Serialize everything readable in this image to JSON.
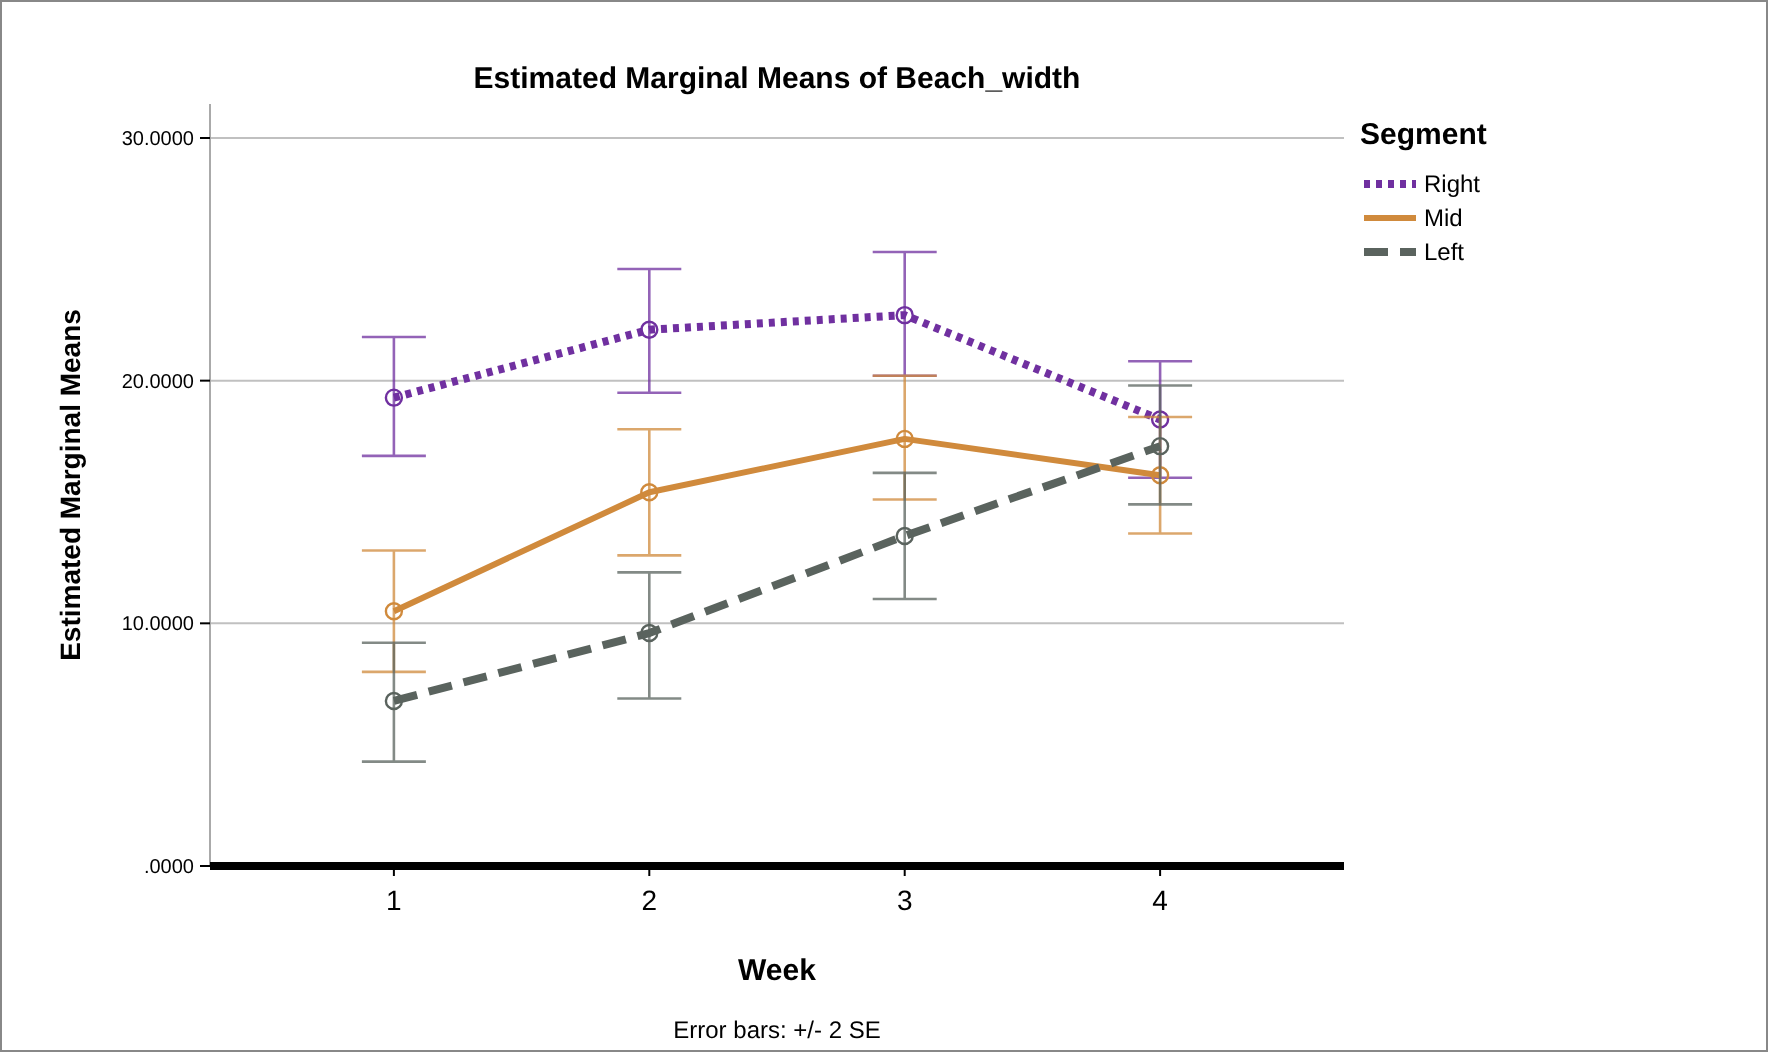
{
  "chart_data": {
    "type": "line",
    "title": "Estimated Marginal Means of Beach_width",
    "xlabel": "Week",
    "ylabel": "Estimated Marginal Means",
    "legend_title": "Segment",
    "legend": "top right",
    "grid": "y",
    "marker": "circle",
    "categories": [
      "1",
      "2",
      "3",
      "4"
    ],
    "ylim": [
      0,
      31.4
    ],
    "yticks": [
      {
        "value": 0,
        "label": ".0000"
      },
      {
        "value": 10,
        "label": "10.0000"
      },
      {
        "value": 20,
        "label": "20.0000"
      },
      {
        "value": 30,
        "label": "30.0000"
      }
    ],
    "series": [
      {
        "name": "Right",
        "color": "#7030a0",
        "line_style": "dotted",
        "values": [
          19.3,
          22.1,
          22.7,
          18.4
        ],
        "errors": [
          [
            16.9,
            21.8
          ],
          [
            19.5,
            24.6
          ],
          [
            20.2,
            25.3
          ],
          [
            16.0,
            20.8
          ]
        ]
      },
      {
        "name": "Mid",
        "color": "#d08a3c",
        "line_style": "solid",
        "values": [
          10.5,
          15.4,
          17.6,
          16.1
        ],
        "errors": [
          [
            8.0,
            13.0
          ],
          [
            12.8,
            18.0
          ],
          [
            15.1,
            20.2
          ],
          [
            13.7,
            18.5
          ]
        ]
      },
      {
        "name": "Left",
        "color": "#5a635e",
        "line_style": "dashed",
        "values": [
          6.8,
          9.6,
          13.6,
          17.3
        ],
        "errors": [
          [
            4.3,
            9.2
          ],
          [
            6.9,
            12.1
          ],
          [
            11.0,
            16.2
          ],
          [
            14.9,
            19.8
          ]
        ]
      }
    ],
    "annotations": [
      "Error bars: +/- 2 SE"
    ]
  }
}
